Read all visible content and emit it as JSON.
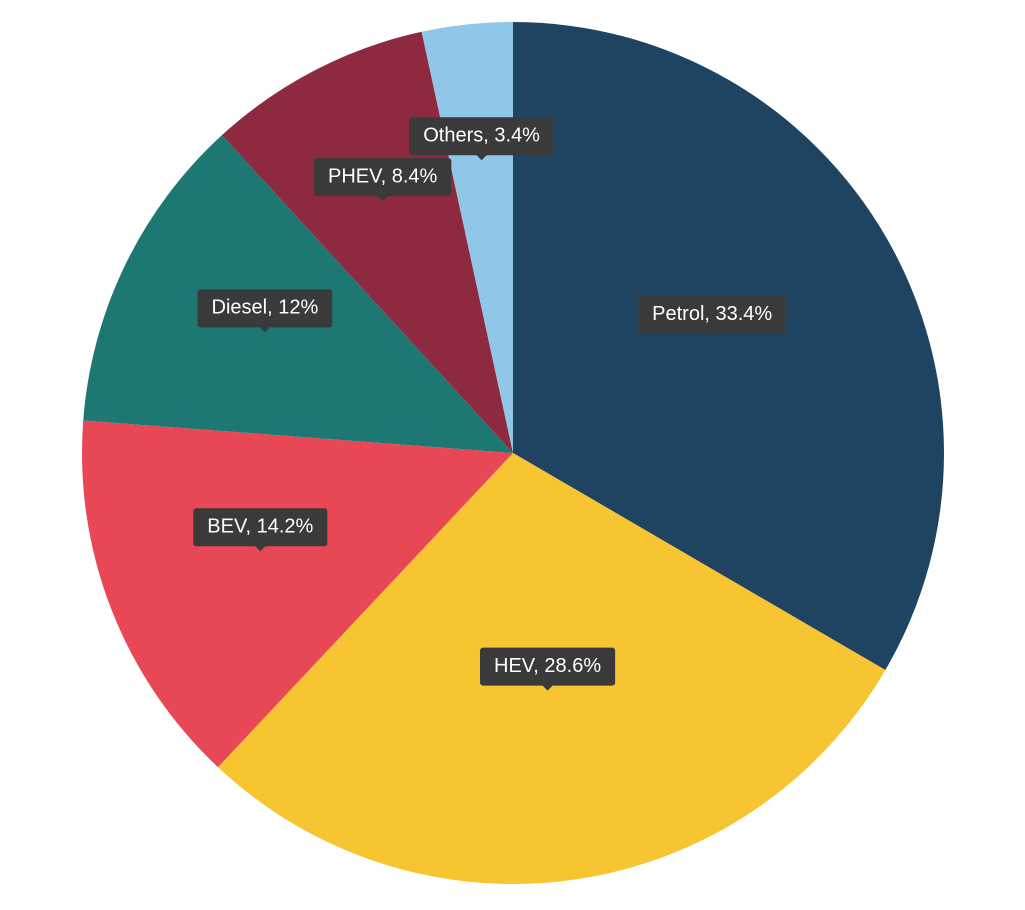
{
  "chart_data": {
    "type": "pie",
    "categories": [
      "Petrol",
      "HEV",
      "BEV",
      "Diesel",
      "PHEV",
      "Others"
    ],
    "values": [
      33.4,
      28.6,
      14.2,
      12,
      8.4,
      3.4
    ],
    "value_labels": [
      "Petrol, 33.4%",
      "HEV, 28.6%",
      "BEV, 14.2%",
      "Diesel, 12%",
      "PHEV, 8.4%",
      "Others, 3.4%"
    ],
    "colors": [
      "#1e4461",
      "#f7c531",
      "#e84855",
      "#1d7874",
      "#8e2a40",
      "#90c6e8"
    ]
  }
}
